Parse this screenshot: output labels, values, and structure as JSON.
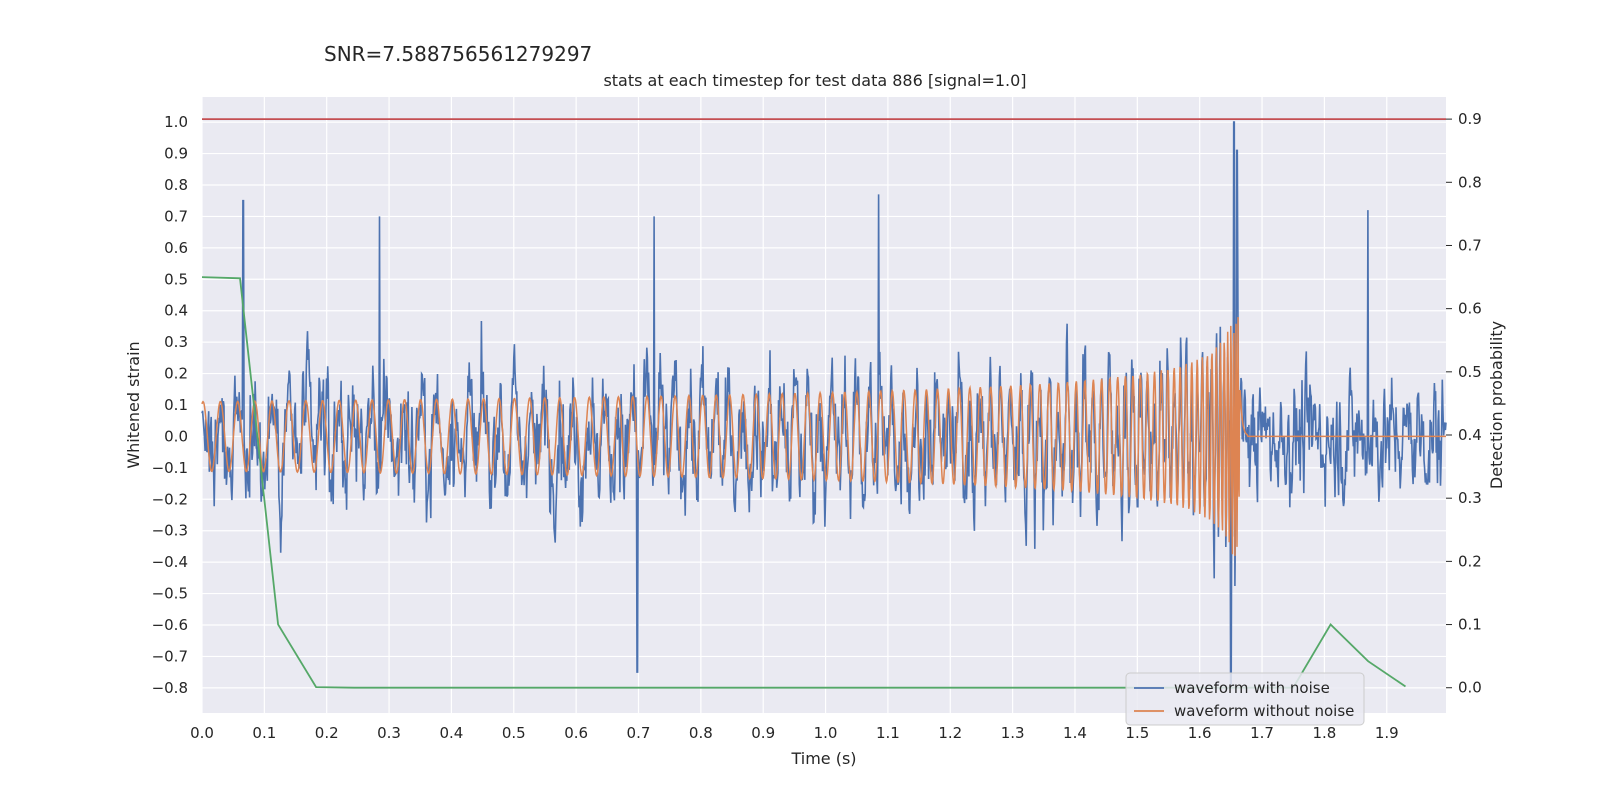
{
  "header": {
    "snr_text": "SNR=7.588756561279297",
    "title": "stats at each timestep for test data 886 [signal=1.0]"
  },
  "chart_data": {
    "type": "line",
    "title": "stats at each timestep for test data 886 [signal=1.0]",
    "suptitle": "SNR=7.588756561279297",
    "xlabel": "Time (s)",
    "ylabel_left": "Whitened strain",
    "ylabel_right": "Detection probability",
    "xlim": [
      0.0,
      1.995
    ],
    "ylim_left": [
      -0.88,
      1.08
    ],
    "ylim_right": [
      -0.04,
      0.935
    ],
    "x_ticks": [
      "0.0",
      "0.1",
      "0.2",
      "0.3",
      "0.4",
      "0.5",
      "0.6",
      "0.7",
      "0.8",
      "0.9",
      "1.0",
      "1.1",
      "1.2",
      "1.3",
      "1.4",
      "1.5",
      "1.6",
      "1.7",
      "1.8",
      "1.9"
    ],
    "y_ticks_left": [
      "1.0",
      "0.9",
      "0.8",
      "0.7",
      "0.6",
      "0.5",
      "0.4",
      "0.3",
      "0.2",
      "0.1",
      "0.0",
      "−0.1",
      "−0.2",
      "−0.3",
      "−0.4",
      "−0.5",
      "−0.6",
      "−0.7",
      "−0.8"
    ],
    "y_ticks_right": [
      "0.9",
      "0.8",
      "0.7",
      "0.6",
      "0.5",
      "0.4",
      "0.3",
      "0.2",
      "0.1",
      "0.0"
    ],
    "grid": true,
    "legend_position": "bottom-right",
    "colors": {
      "noise": "#4c72b0",
      "clean": "#dd8452",
      "probability": "#55a868",
      "threshold": "#c44e52",
      "background": "#eaeaf2",
      "grid": "#ffffff"
    },
    "series": [
      {
        "name": "waveform with noise",
        "axis": "left",
        "description": "dense noisy whitened strain, roughly ±0.3 typical with spikes up to 1.0 and down to -0.8",
        "peaks": [
          {
            "x": 0.066,
            "y": 0.75
          },
          {
            "x": 0.285,
            "y": 0.7
          },
          {
            "x": 0.725,
            "y": 0.7
          },
          {
            "x": 1.085,
            "y": 0.77
          },
          {
            "x": 1.655,
            "y": 1.0
          },
          {
            "x": 1.66,
            "y": 0.91
          },
          {
            "x": 1.87,
            "y": 0.72
          },
          {
            "x": 0.698,
            "y": -0.75
          },
          {
            "x": 1.65,
            "y": -0.8
          }
        ]
      },
      {
        "name": "waveform without noise",
        "axis": "left",
        "description": "chirp signal oscillating near 0, amplitude growing from ~0.01 to ~0.38 and merging at ~1.665 s, then zero",
        "merger_time": 1.665,
        "peak_amplitude": 0.38
      },
      {
        "axis": "right",
        "x": [
          0.0,
          0.061,
          0.122,
          0.183,
          0.244,
          1.75,
          1.81,
          1.87,
          1.93
        ],
        "y": [
          0.65,
          0.648,
          0.1,
          0.001,
          0.0,
          0.0,
          0.1,
          0.042,
          0.002
        ]
      },
      {
        "axis": "right",
        "x": [
          0.0,
          1.995
        ],
        "y": [
          0.9,
          0.9
        ]
      }
    ]
  }
}
